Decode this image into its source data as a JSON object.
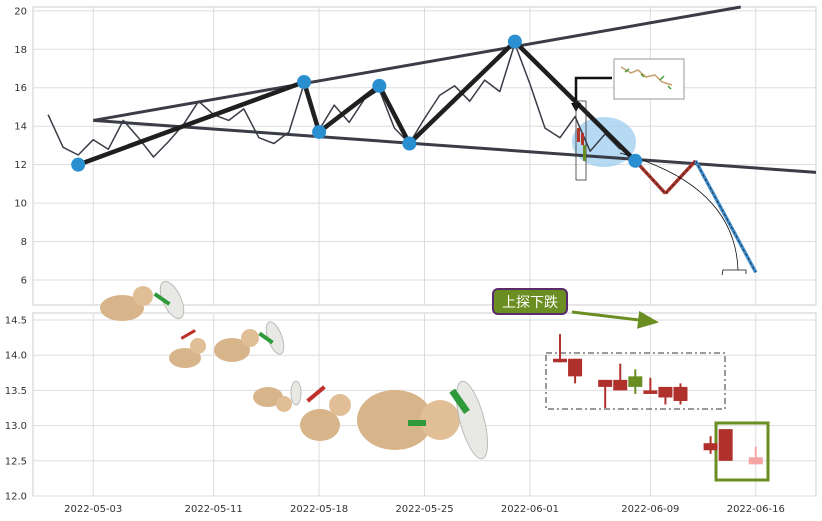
{
  "chart_data": [
    {
      "type": "line",
      "panel": "top",
      "ylim": [
        4.7,
        20.2
      ],
      "yticks": [
        6,
        8,
        10,
        12,
        14,
        16,
        18,
        20
      ],
      "grid": true,
      "price_points": [
        {
          "x": "2022-04-30",
          "y": 14.6
        },
        {
          "x": "2022-05-01",
          "y": 12.9
        },
        {
          "x": "2022-05-02",
          "y": 12.5
        },
        {
          "x": "2022-05-03",
          "y": 13.3
        },
        {
          "x": "2022-05-04",
          "y": 12.8
        },
        {
          "x": "2022-05-05",
          "y": 14.3
        },
        {
          "x": "2022-05-06",
          "y": 13.4
        },
        {
          "x": "2022-05-07",
          "y": 12.4
        },
        {
          "x": "2022-05-08",
          "y": 13.2
        },
        {
          "x": "2022-05-09",
          "y": 14.1
        },
        {
          "x": "2022-05-10",
          "y": 15.3
        },
        {
          "x": "2022-05-11",
          "y": 14.6
        },
        {
          "x": "2022-05-12",
          "y": 14.3
        },
        {
          "x": "2022-05-13",
          "y": 14.9
        },
        {
          "x": "2022-05-14",
          "y": 13.4
        },
        {
          "x": "2022-05-15",
          "y": 13.1
        },
        {
          "x": "2022-05-16",
          "y": 13.7
        },
        {
          "x": "2022-05-17",
          "y": 16.2
        },
        {
          "x": "2022-05-18",
          "y": 13.8
        },
        {
          "x": "2022-05-19",
          "y": 15.1
        },
        {
          "x": "2022-05-20",
          "y": 14.2
        },
        {
          "x": "2022-05-21",
          "y": 15.4
        },
        {
          "x": "2022-05-22",
          "y": 15.9
        },
        {
          "x": "2022-05-23",
          "y": 13.9
        },
        {
          "x": "2022-05-24",
          "y": 13.1
        },
        {
          "x": "2022-05-25",
          "y": 14.4
        },
        {
          "x": "2022-05-26",
          "y": 15.6
        },
        {
          "x": "2022-05-27",
          "y": 16.1
        },
        {
          "x": "2022-05-28",
          "y": 15.3
        },
        {
          "x": "2022-05-29",
          "y": 16.4
        },
        {
          "x": "2022-05-30",
          "y": 15.8
        },
        {
          "x": "2022-05-31",
          "y": 18.3
        },
        {
          "x": "2022-06-01",
          "y": 16.2
        },
        {
          "x": "2022-06-02",
          "y": 13.9
        },
        {
          "x": "2022-06-03",
          "y": 13.4
        },
        {
          "x": "2022-06-04",
          "y": 14.5
        },
        {
          "x": "2022-06-05",
          "y": 12.7
        },
        {
          "x": "2022-06-06",
          "y": 13.6
        },
        {
          "x": "2022-06-07",
          "y": 12.8
        }
      ],
      "trend_lines": [
        {
          "role": "upper",
          "from": {
            "x": "2022-05-03",
            "y": 14.3
          },
          "to": {
            "x": "2022-06-15",
            "y": 20.2
          }
        },
        {
          "role": "lower",
          "from": {
            "x": "2022-05-03",
            "y": 14.3
          },
          "to": {
            "x": "2022-06-20",
            "y": 11.6
          }
        }
      ],
      "zigzag": [
        {
          "x": "2022-05-02",
          "y": 12.0
        },
        {
          "x": "2022-05-17",
          "y": 16.3
        },
        {
          "x": "2022-05-18",
          "y": 13.7
        },
        {
          "x": "2022-05-22",
          "y": 16.1
        },
        {
          "x": "2022-05-24",
          "y": 13.1
        },
        {
          "x": "2022-05-31",
          "y": 18.4
        },
        {
          "x": "2022-06-08",
          "y": 12.2
        }
      ],
      "projection": [
        {
          "x": "2022-06-08",
          "y": 12.2
        },
        {
          "x": "2022-06-10",
          "y": 10.5
        },
        {
          "x": "2022-06-12",
          "y": 12.2
        },
        {
          "x": "2022-06-16",
          "y": 6.4
        }
      ],
      "colors": {
        "price": "#3a3d47",
        "trend": "#3a3d47",
        "zigzag": "#1f1f1f",
        "marker": "#2a8fd0",
        "down": "#b0352b",
        "down2": "#3f8fd0",
        "zone": "#9ecdf0"
      }
    },
    {
      "type": "candlestick",
      "panel": "bottom",
      "ylim": [
        12.0,
        14.6
      ],
      "yticks": [
        12.0,
        12.5,
        13.0,
        13.5,
        14.0,
        14.5
      ],
      "xlim": [
        "2022-04-29",
        "2022-06-20"
      ],
      "xticks": [
        "2022-05-03",
        "2022-05-11",
        "2022-05-18",
        "2022-05-25",
        "2022-06-01",
        "2022-06-09",
        "2022-06-16"
      ],
      "grid": true,
      "annotation": "上探下跌",
      "candles": [
        {
          "x": "2022-06-03",
          "open": 13.95,
          "high": 14.3,
          "low": 13.9,
          "close": 13.9
        },
        {
          "x": "2022-06-04",
          "open": 13.95,
          "high": 13.95,
          "low": 13.6,
          "close": 13.7
        },
        {
          "x": "2022-06-06",
          "open": 13.65,
          "high": 13.65,
          "low": 13.25,
          "close": 13.55
        },
        {
          "x": "2022-06-07",
          "open": 13.65,
          "high": 13.88,
          "low": 13.5,
          "close": 13.5
        },
        {
          "x": "2022-06-08",
          "open": 13.55,
          "high": 13.8,
          "low": 13.45,
          "close": 13.7
        },
        {
          "x": "2022-06-09",
          "open": 13.5,
          "high": 13.68,
          "low": 13.45,
          "close": 13.45
        },
        {
          "x": "2022-06-10",
          "open": 13.55,
          "high": 13.55,
          "low": 13.3,
          "close": 13.4
        },
        {
          "x": "2022-06-11",
          "open": 13.55,
          "high": 13.6,
          "low": 13.3,
          "close": 13.35
        },
        {
          "x": "2022-06-13",
          "open": 12.75,
          "high": 12.85,
          "low": 12.6,
          "close": 12.65
        },
        {
          "x": "2022-06-14",
          "open": 12.95,
          "high": 12.95,
          "low": 12.5,
          "close": 12.5
        },
        {
          "x": "2022-06-16",
          "open": 12.55,
          "high": 12.7,
          "low": 12.45,
          "close": 12.45
        }
      ],
      "colors": {
        "up": "#6b8e23",
        "down": "#b0302b",
        "faded": "#f4a6a6",
        "highlight": "#6b8e23",
        "callout_bg": "#6b8e23",
        "callout_border": "#5a2a6a",
        "arrow": "#6b8e23"
      }
    }
  ]
}
